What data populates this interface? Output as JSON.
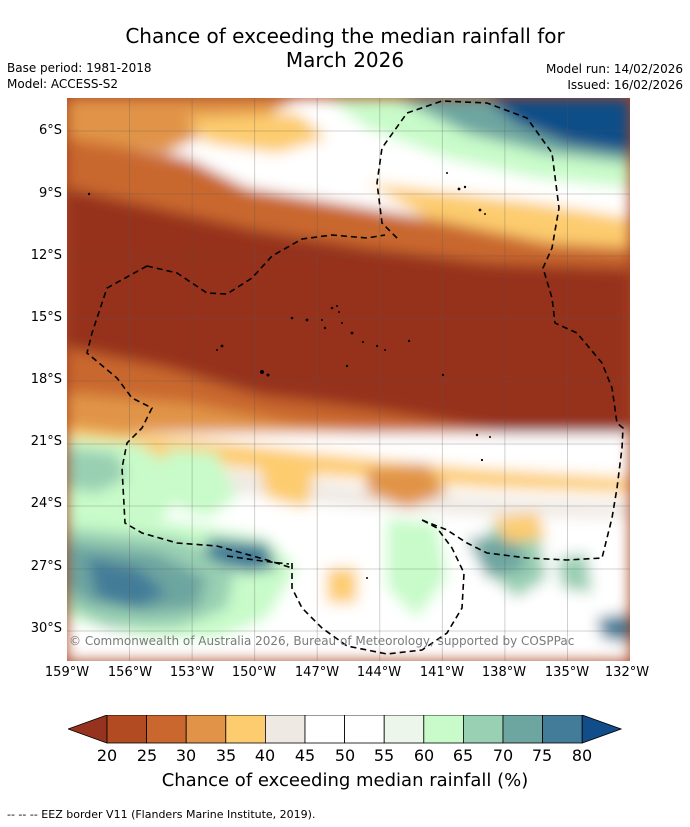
{
  "title": {
    "line1": "Chance of exceeding the median rainfall for",
    "line2": "March 2026"
  },
  "meta": {
    "base_period": "Base period: 1981-2018",
    "model": "Model: ACCESS-S2",
    "model_run": "Model run: 14/02/2026",
    "issued": "Issued: 16/02/2026"
  },
  "axes": {
    "lat_ticks": [
      "6°S",
      "9°S",
      "12°S",
      "15°S",
      "18°S",
      "21°S",
      "24°S",
      "27°S",
      "30°S"
    ],
    "lon_ticks": [
      "159°W",
      "156°W",
      "153°W",
      "150°W",
      "147°W",
      "144°W",
      "141°W",
      "138°W",
      "135°W",
      "132°W"
    ],
    "lat_range": [
      -32,
      -5
    ],
    "lon_range": [
      -159,
      -132
    ]
  },
  "copyright": "© Commonwealth of Australia 2026, Bureau of Meteorology, supported by COSPPac",
  "colorbar": {
    "labels": [
      "20",
      "25",
      "30",
      "35",
      "40",
      "45",
      "50",
      "55",
      "60",
      "65",
      "70",
      "75",
      "80"
    ],
    "colors": [
      "#b24a22",
      "#c9672f",
      "#e19447",
      "#fdcc6e",
      "#efe9e3",
      "#ffffff",
      "#ffffff",
      "#ecf6ea",
      "#c8fbc9",
      "#99cfb2",
      "#6da5a0",
      "#437c98"
    ],
    "low_extend_color": "#96331f",
    "high_extend_color": "#114d88",
    "title": "Chance of exceeding median rainfall (%)"
  },
  "footnote": "--  --  -- EEZ border V11 (Flanders Marine Institute, 2019).",
  "chart_data": {
    "type": "heatmap",
    "title": "Chance of exceeding the median rainfall for March 2026",
    "xlabel": "",
    "ylabel": "",
    "x_range": [
      -159,
      -132
    ],
    "y_range": [
      -32,
      -5
    ],
    "value_unit": "%",
    "levels": [
      20,
      25,
      30,
      35,
      40,
      45,
      50,
      55,
      60,
      65,
      70,
      75,
      80
    ],
    "regions": [
      {
        "area": "north-east (5°S-8°S, 141°W-132°W)",
        "value": 80
      },
      {
        "area": "6°S-7°S band west",
        "value": 35
      },
      {
        "area": "central band 10°S-19°S",
        "value": 15
      },
      {
        "area": "north of band 8°S-10°S",
        "value": 30
      },
      {
        "area": "around 22°S-25°S",
        "value": 40
      },
      {
        "area": "south-west (25°S-31°S, 159°W-150°W)",
        "value": 75
      },
      {
        "area": "south centre (25°S-30°S, 141°W-135°W)",
        "value": 65
      }
    ]
  }
}
